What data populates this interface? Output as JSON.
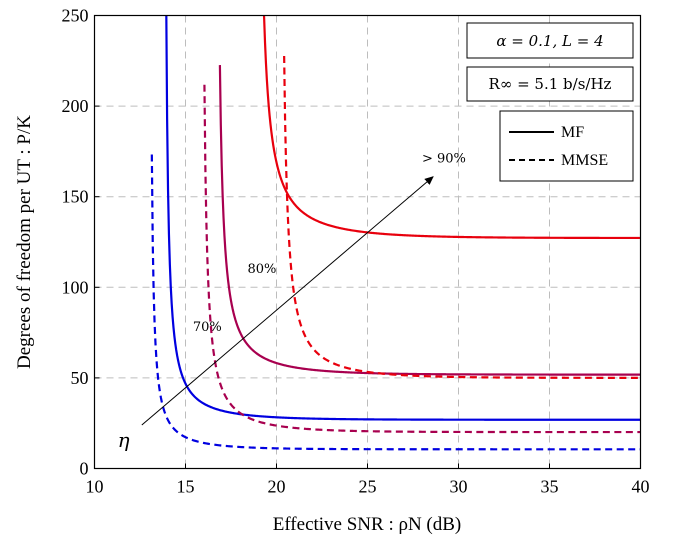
{
  "chart_data": {
    "type": "line",
    "xlabel": "Effective SNR : ρN (dB)",
    "ylabel": "Degrees of freedom per UT : P/K",
    "xlim": [
      10,
      40
    ],
    "ylim": [
      0,
      250
    ],
    "xticks": [
      10,
      15,
      20,
      25,
      30,
      35,
      40
    ],
    "yticks": [
      0,
      50,
      100,
      150,
      200,
      250
    ],
    "grid": true,
    "legend_position": "top-right",
    "legend": [
      {
        "label": "MF",
        "style": "solid"
      },
      {
        "label": "MMSE",
        "style": "dashed"
      }
    ],
    "info_boxes": [
      "α = 0.1,  L = 4",
      "R∞ = 5.1 b/s/Hz"
    ],
    "annotations": [
      {
        "text": "70%",
        "x": 16.2,
        "y": 76
      },
      {
        "text": "80%",
        "x": 19.2,
        "y": 108
      },
      {
        "text": "> 90%",
        "x": 29.2,
        "y": 169
      },
      {
        "text": "η",
        "x": 11.6,
        "y": 12
      }
    ],
    "arrow": {
      "from": [
        12.6,
        24
      ],
      "to": [
        28.6,
        161
      ]
    },
    "series": [
      {
        "level": "70%",
        "style": "solid",
        "color": "#0000e0",
        "asymptote": 13.82,
        "floor": 26.9,
        "a": 10.0,
        "tau": 2.9
      },
      {
        "level": "70%",
        "style": "dashed",
        "color": "#0000e0",
        "asymptote": 13.03,
        "floor": 10.6,
        "a": 8.0,
        "tau": 2.5
      },
      {
        "level": "80%",
        "style": "solid",
        "color": "#a8004f",
        "asymptote": 16.67,
        "floor": 51.8,
        "a": 13.0,
        "tau": 3.0
      },
      {
        "level": "80%",
        "style": "dashed",
        "color": "#a8004f",
        "asymptote": 15.87,
        "floor": 20.1,
        "a": 12.0,
        "tau": 2.8
      },
      {
        "level": "> 90%",
        "style": "solid",
        "color": "#e8000d",
        "asymptote": 18.9,
        "floor": 127.2,
        "a": 16.5,
        "tau": 3.3
      },
      {
        "level": "> 90%",
        "style": "dashed",
        "color": "#e8000d",
        "asymptote": 20.2,
        "floor": 50.0,
        "a": 14.0,
        "tau": 2.9
      }
    ]
  }
}
